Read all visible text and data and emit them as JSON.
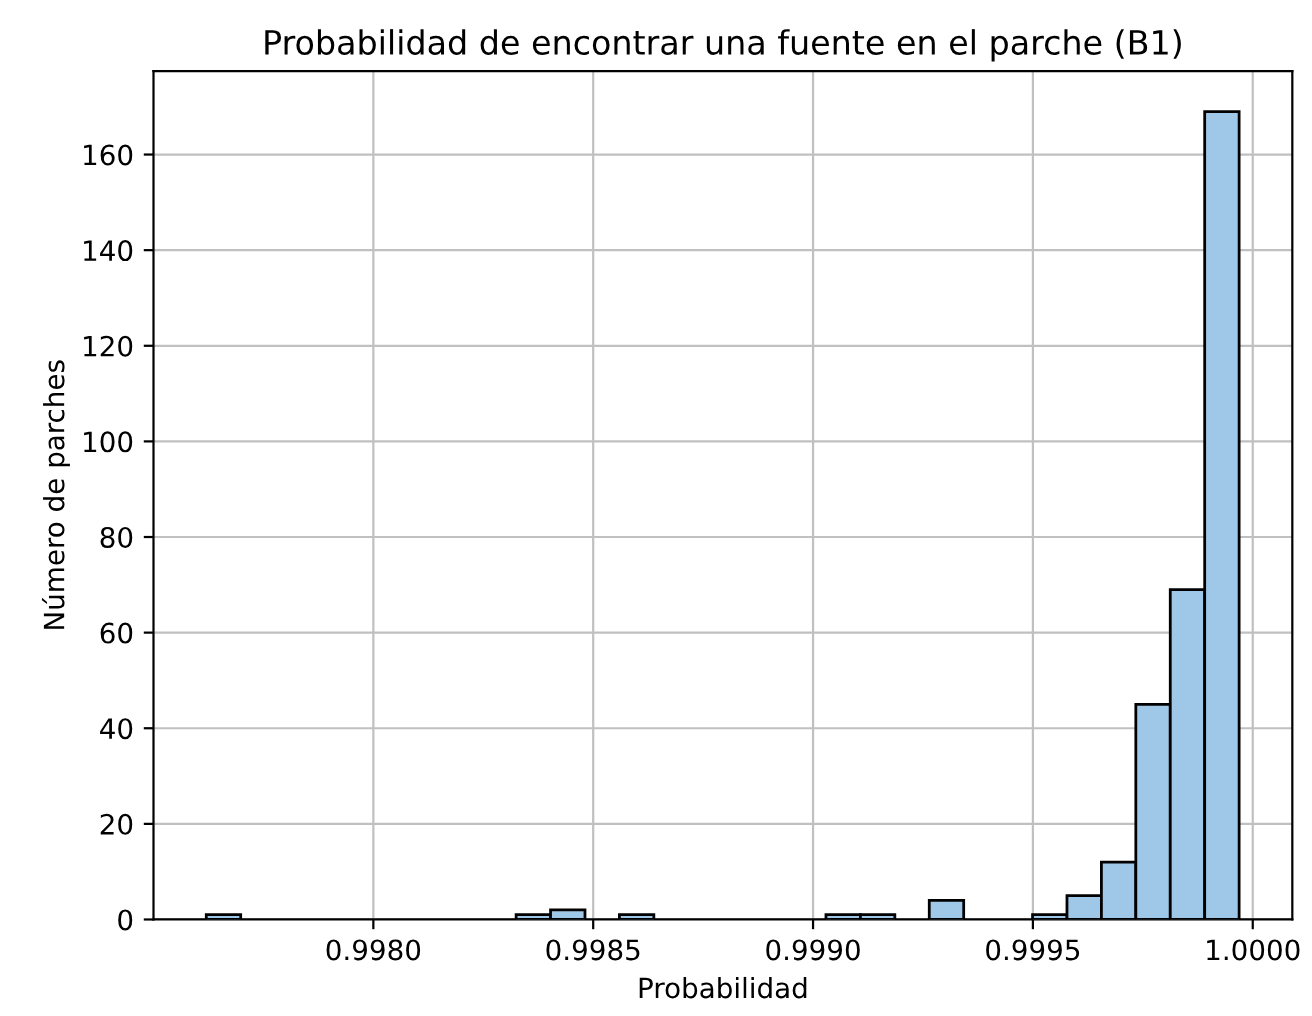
{
  "chart_data": {
    "type": "histogram",
    "title": "Probabilidad de encontrar una fuente en el parche (B1)",
    "xlabel": "Probabilidad",
    "ylabel": "Número de parches",
    "bins": [
      0.99762,
      0.9976983,
      0.9977766,
      0.9978549,
      0.9979332,
      0.9980115,
      0.9980898,
      0.9981681,
      0.9982464,
      0.9983247,
      0.998403,
      0.9984813,
      0.9985596,
      0.9986379,
      0.9987162,
      0.9987945,
      0.9988728,
      0.9989511,
      0.9990294,
      0.9991077,
      0.999186,
      0.9992643,
      0.9993426,
      0.9994209,
      0.9994992,
      0.9995775,
      0.9996558,
      0.9997341,
      0.9998124,
      0.9998907,
      0.999969
    ],
    "values": [
      1,
      0,
      0,
      0,
      0,
      0,
      0,
      0,
      0,
      1,
      2,
      0,
      1,
      0,
      0,
      0,
      0,
      0,
      1,
      1,
      0,
      4,
      0,
      0,
      1,
      5,
      12,
      45,
      69,
      169
    ],
    "color": "#9fc8e8",
    "xlim": [
      0.9975,
      1.00009
    ],
    "xticks": [
      {
        "value": 0.998,
        "label": "0.9980"
      },
      {
        "value": 0.9985,
        "label": "0.9985"
      },
      {
        "value": 0.999,
        "label": "0.9990"
      },
      {
        "value": 0.9995,
        "label": "0.9995"
      },
      {
        "value": 1.0,
        "label": "1.0000"
      }
    ],
    "ylim": [
      0,
      177.45
    ],
    "yticks": [
      0,
      20,
      40,
      60,
      80,
      100,
      120,
      140,
      160
    ],
    "grid": true
  }
}
